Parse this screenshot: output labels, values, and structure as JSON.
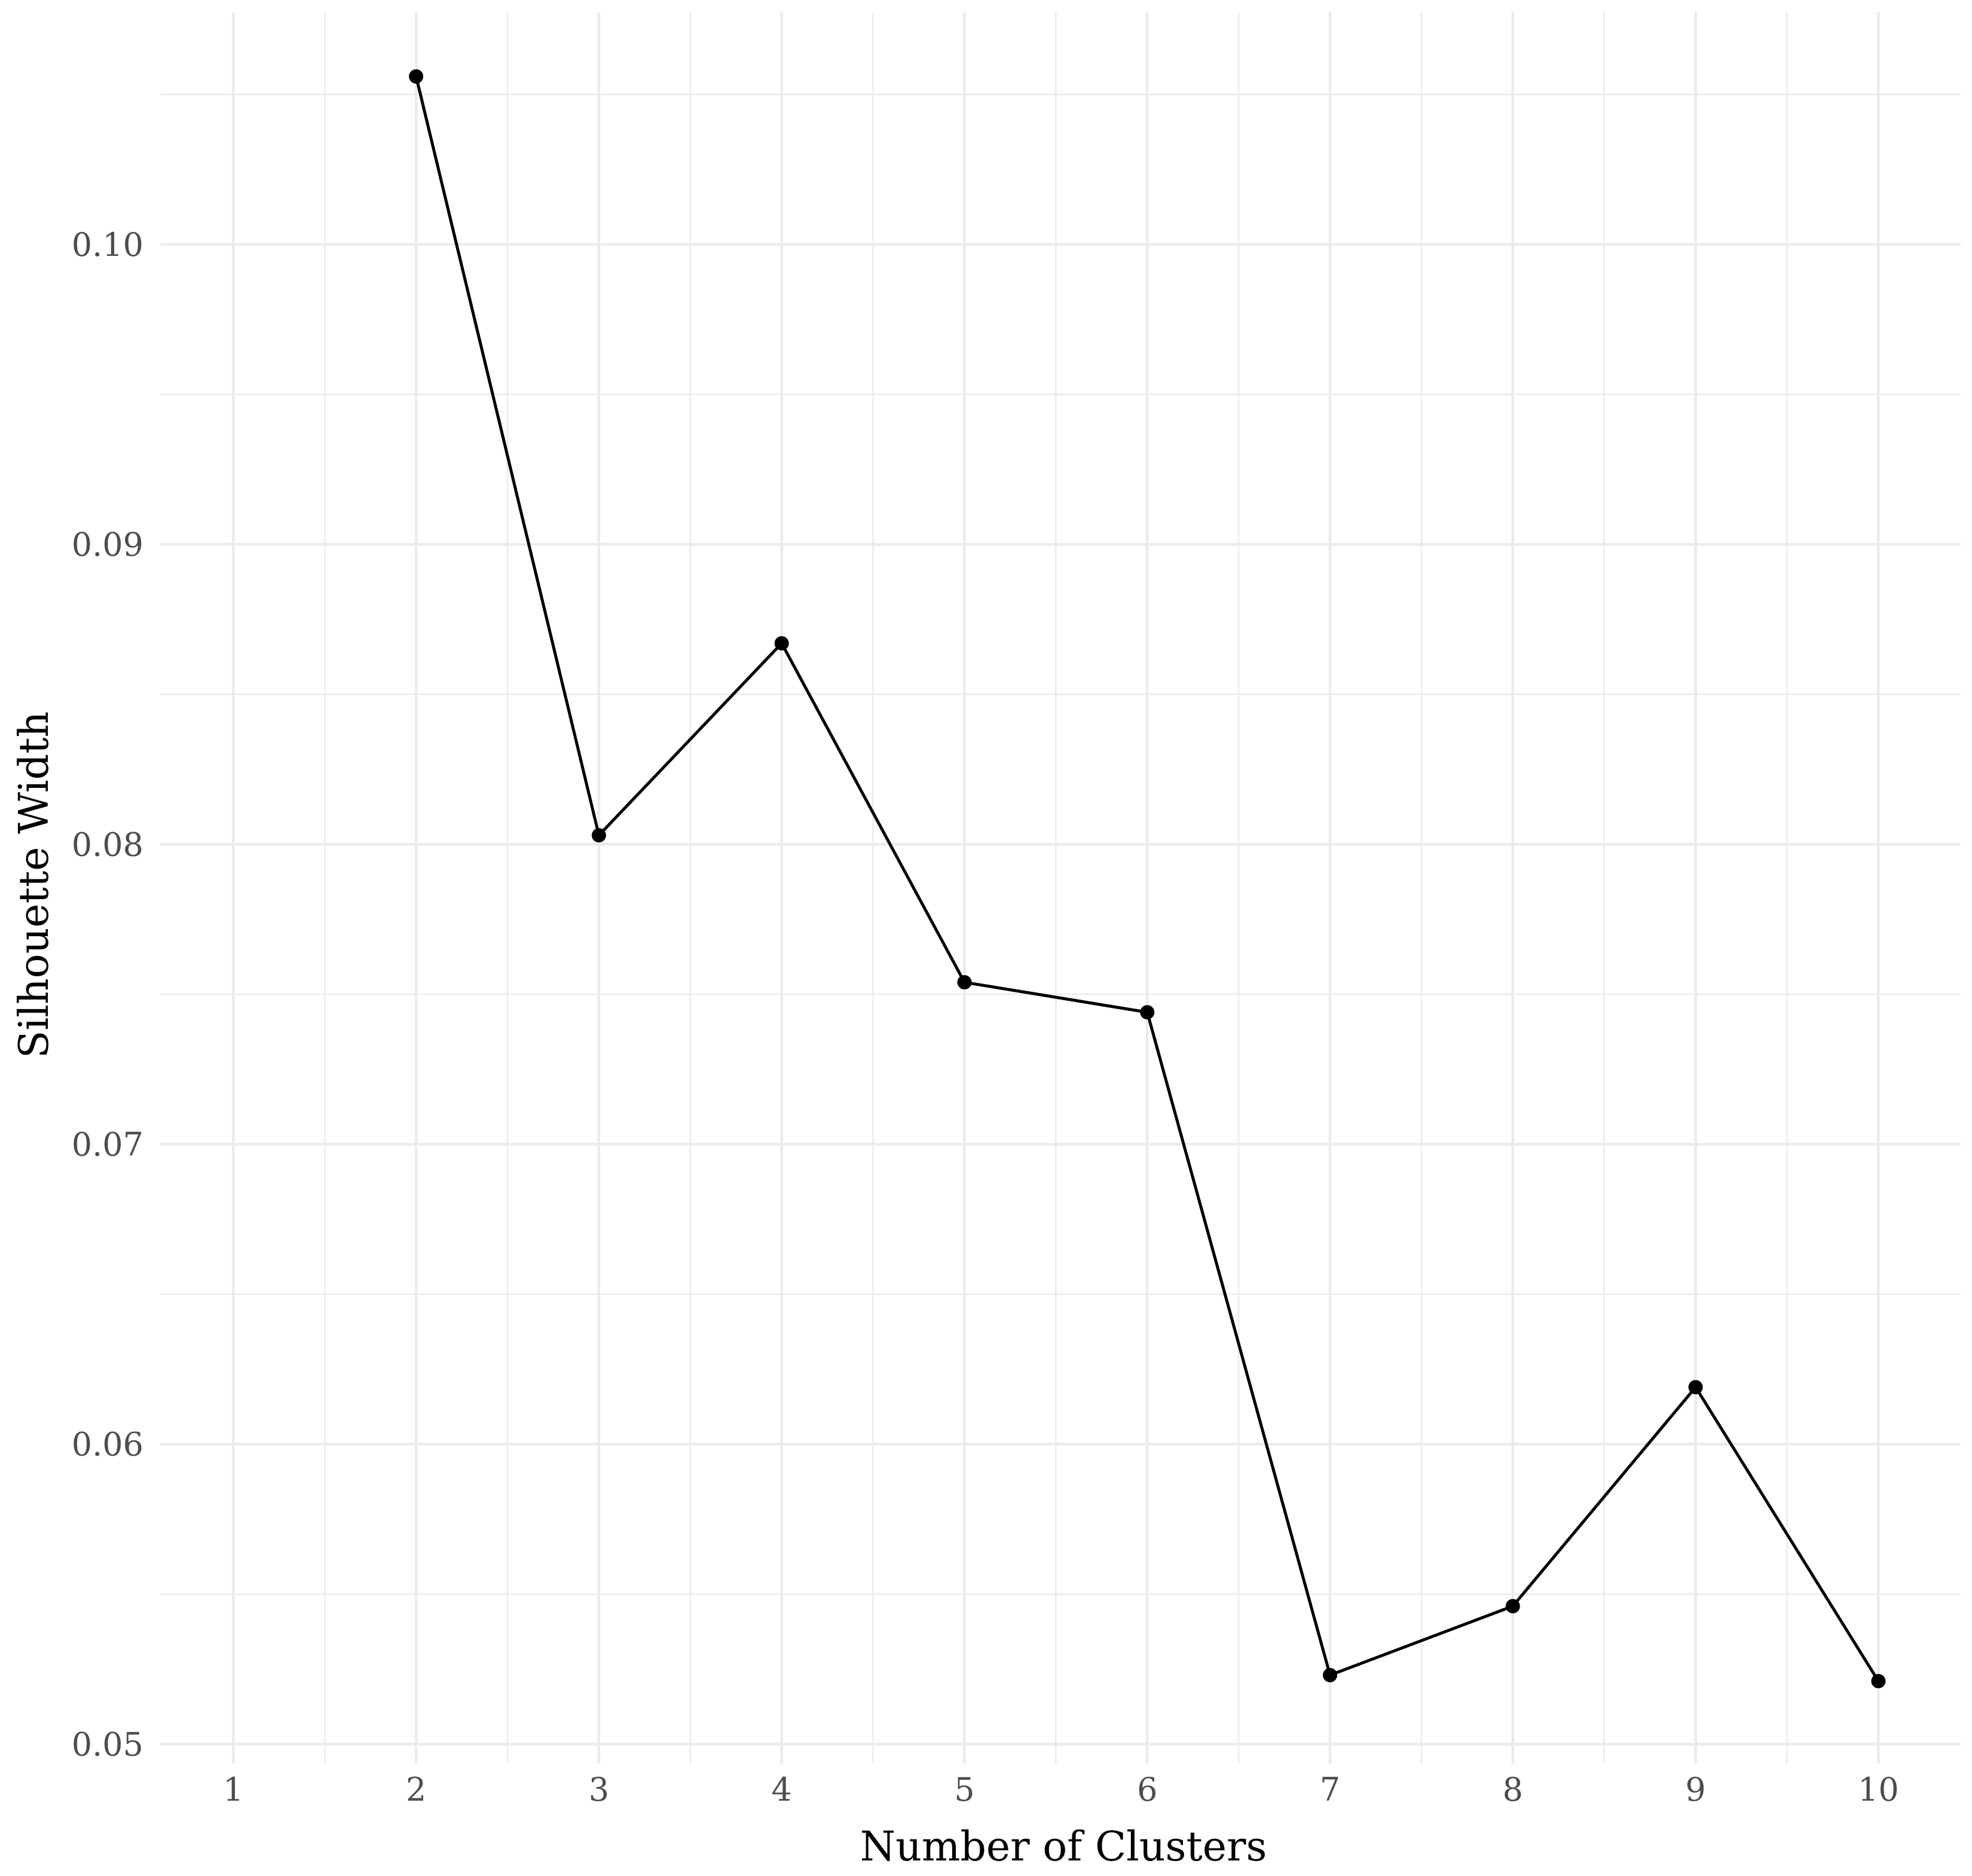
{
  "chart_data": {
    "type": "line",
    "title": "",
    "xlabel": "Number of Clusters",
    "ylabel": "Silhouette Width",
    "x": [
      2,
      3,
      4,
      5,
      6,
      7,
      8,
      9,
      10
    ],
    "series": [
      {
        "values": [
          0.1056,
          0.0803,
          0.0867,
          0.0754,
          0.0744,
          0.0523,
          0.0546,
          0.0619,
          0.0521
        ]
      }
    ],
    "x_ticks": [
      "1",
      "2",
      "3",
      "4",
      "5",
      "6",
      "7",
      "8",
      "9",
      "10"
    ],
    "y_ticks": [
      "0.05",
      "0.06",
      "0.07",
      "0.08",
      "0.09",
      "0.10"
    ],
    "xlim": [
      0.6,
      10.45
    ],
    "ylim": [
      0.04935,
      0.10775
    ],
    "grid": true,
    "legend": "none",
    "colors": {
      "line": "#000000",
      "point": "#000000",
      "grid": "#ebebeb",
      "tick_text": "#4d4d4d"
    }
  }
}
